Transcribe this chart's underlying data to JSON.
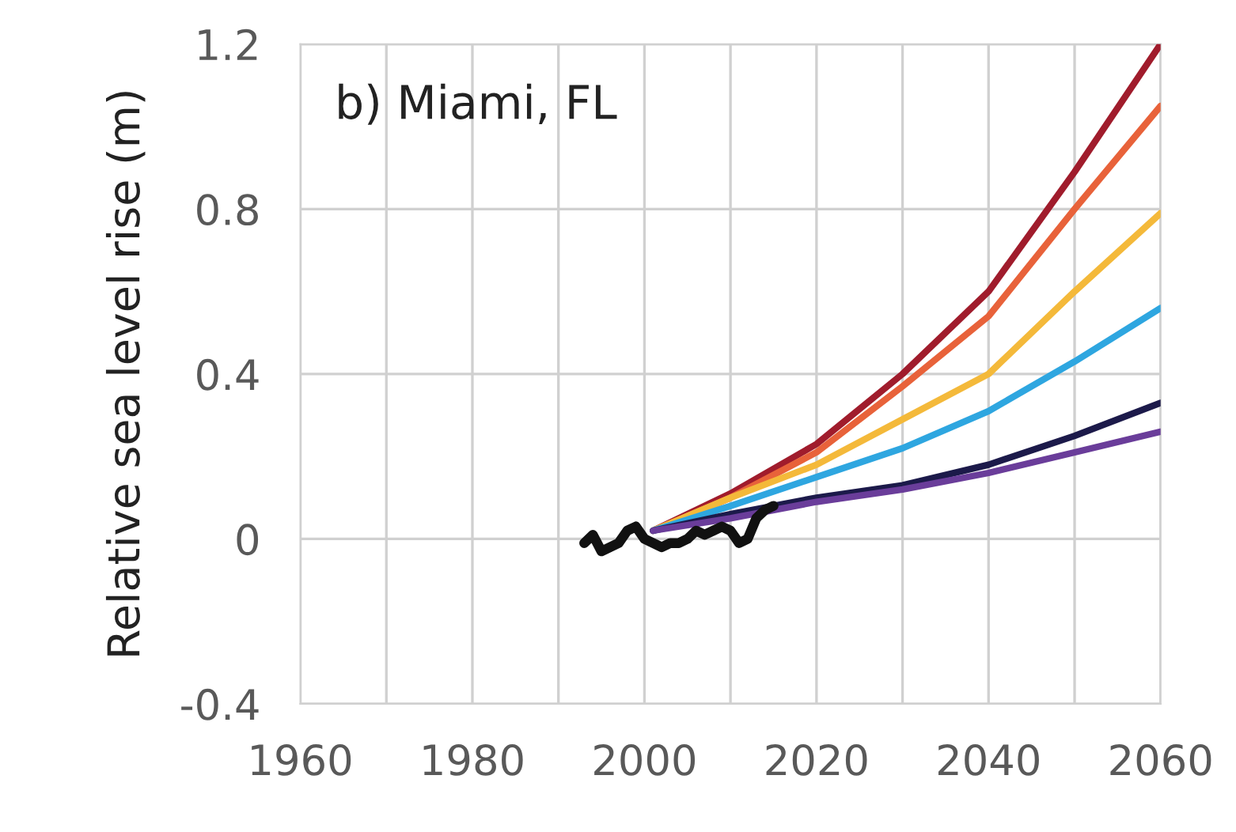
{
  "chart_data": {
    "type": "line",
    "ylabel": "Relative sea level rise (m)",
    "annotations": [
      "b) Miami, FL"
    ],
    "xlim": [
      1960,
      2060
    ],
    "xticks": [
      1960,
      {
        "value": 1970,
        "label": null
      },
      1980,
      {
        "value": 1990,
        "label": null
      },
      2000,
      {
        "value": 2010,
        "label": null
      },
      2020,
      {
        "value": 2030,
        "label": null
      },
      2040,
      {
        "value": 2050,
        "label": null
      },
      2060
    ],
    "ylim": [
      -0.4,
      1.2
    ],
    "yticks": [
      {
        "value": -0.4,
        "label": "-0.4"
      },
      0,
      0.4,
      0.8,
      1.2
    ],
    "grid": true,
    "marker": "none",
    "line_style": "solid",
    "series": [
      {
        "color": "#a01c2c",
        "x": [
          2001,
          2010,
          2020,
          2030,
          2040,
          2050,
          2060
        ],
        "values": [
          0.02,
          0.11,
          0.23,
          0.4,
          0.6,
          0.89,
          1.2
        ]
      },
      {
        "color": "#e8623a",
        "x": [
          2001,
          2010,
          2020,
          2030,
          2040,
          2050,
          2060
        ],
        "values": [
          0.02,
          0.1,
          0.21,
          0.37,
          0.54,
          0.8,
          1.05
        ]
      },
      {
        "color": "#f4b93a",
        "x": [
          2001,
          2010,
          2020,
          2030,
          2040,
          2050,
          2060
        ],
        "values": [
          0.02,
          0.1,
          0.18,
          0.29,
          0.4,
          0.6,
          0.79
        ]
      },
      {
        "color": "#2ea6e0",
        "x": [
          2001,
          2010,
          2020,
          2030,
          2040,
          2050,
          2060
        ],
        "values": [
          0.02,
          0.08,
          0.15,
          0.22,
          0.31,
          0.43,
          0.56
        ]
      },
      {
        "color": "#1c1a4a",
        "x": [
          2001,
          2010,
          2020,
          2030,
          2040,
          2050,
          2060
        ],
        "values": [
          0.02,
          0.06,
          0.1,
          0.13,
          0.18,
          0.25,
          0.33
        ]
      },
      {
        "color": "#6a3d9a",
        "x": [
          2001,
          2010,
          2020,
          2030,
          2040,
          2050,
          2060
        ],
        "values": [
          0.02,
          0.05,
          0.09,
          0.12,
          0.16,
          0.21,
          0.26
        ]
      },
      {
        "color": "#111111",
        "x": [
          1993,
          1994,
          1995,
          1996,
          1997,
          1998,
          1999,
          2000,
          2001,
          2002,
          2003,
          2004,
          2005,
          2006,
          2007,
          2008,
          2009,
          2010,
          2011,
          2012,
          2013,
          2014,
          2015
        ],
        "values": [
          -0.01,
          0.01,
          -0.03,
          -0.02,
          -0.01,
          0.02,
          0.03,
          0.0,
          -0.01,
          -0.02,
          -0.01,
          -0.01,
          0.0,
          0.02,
          0.01,
          0.02,
          0.03,
          0.02,
          -0.01,
          0.0,
          0.05,
          0.07,
          0.08
        ]
      }
    ]
  }
}
